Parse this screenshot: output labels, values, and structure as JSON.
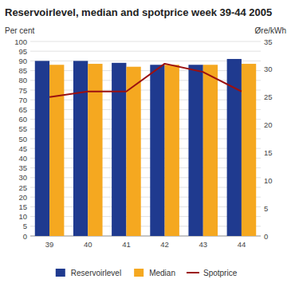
{
  "chart_data": {
    "type": "bar",
    "title": "Reservoirlevel, median and spotprice week 39-44 2005",
    "ylabel": "Per cent",
    "y2label": "Øre/kWh",
    "categories": [
      "39",
      "40",
      "41",
      "42",
      "43",
      "44"
    ],
    "series": [
      {
        "name": "Reservoirlevel",
        "color": "#1F3A8F",
        "values": [
          90,
          90,
          89,
          88,
          88,
          91
        ]
      },
      {
        "name": "Median",
        "color": "#F5A820",
        "values": [
          88,
          88.5,
          87,
          88,
          88,
          88.5
        ]
      },
      {
        "name": "Spotprice",
        "type": "line",
        "axis": "y2",
        "color": "#9B1010",
        "values": [
          25,
          26,
          26,
          31,
          29.5,
          26
        ]
      }
    ],
    "ylim": [
      0,
      100
    ],
    "yticks": [
      0,
      5,
      10,
      15,
      20,
      25,
      30,
      35,
      40,
      45,
      50,
      55,
      60,
      65,
      70,
      75,
      80,
      85,
      90,
      95,
      100
    ],
    "y2lim": [
      0,
      35
    ],
    "y2ticks": [
      0,
      5,
      10,
      15,
      20,
      25,
      30,
      35
    ],
    "grid": true,
    "legend": "bottom"
  }
}
